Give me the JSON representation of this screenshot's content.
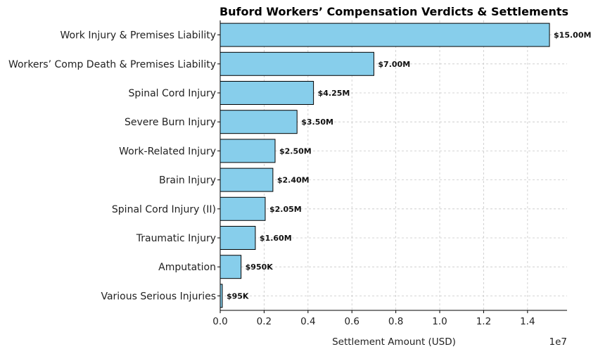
{
  "chart_data": {
    "type": "bar",
    "orientation": "horizontal",
    "title": "Buford Workers’ Compensation Verdicts & Settlements",
    "xlabel": "Settlement Amount (USD)",
    "ylabel": "",
    "x_scale_label": "1e7",
    "xlim": [
      0,
      15800000
    ],
    "x_ticks": [
      0,
      2000000,
      4000000,
      6000000,
      8000000,
      10000000,
      12000000,
      14000000
    ],
    "x_tick_labels": [
      "0.0",
      "0.2",
      "0.4",
      "0.6",
      "0.8",
      "1.0",
      "1.2",
      "1.4"
    ],
    "grid": true,
    "bar_color": "#87ceeb",
    "categories": [
      "Work Injury & Premises Liability",
      "Workers’ Comp Death & Premises Liability",
      "Spinal Cord Injury",
      "Severe Burn Injury",
      "Work-Related Injury",
      "Brain Injury",
      "Spinal Cord Injury (II)",
      "Traumatic Injury",
      "Amputation",
      "Various Serious Injuries"
    ],
    "values": [
      15000000,
      7000000,
      4250000,
      3500000,
      2500000,
      2400000,
      2050000,
      1600000,
      950000,
      95000
    ],
    "data_labels": [
      "$15.00M",
      "$7.00M",
      "$4.25M",
      "$3.50M",
      "$2.50M",
      "$2.40M",
      "$2.05M",
      "$1.60M",
      "$950K",
      "$95K"
    ]
  }
}
